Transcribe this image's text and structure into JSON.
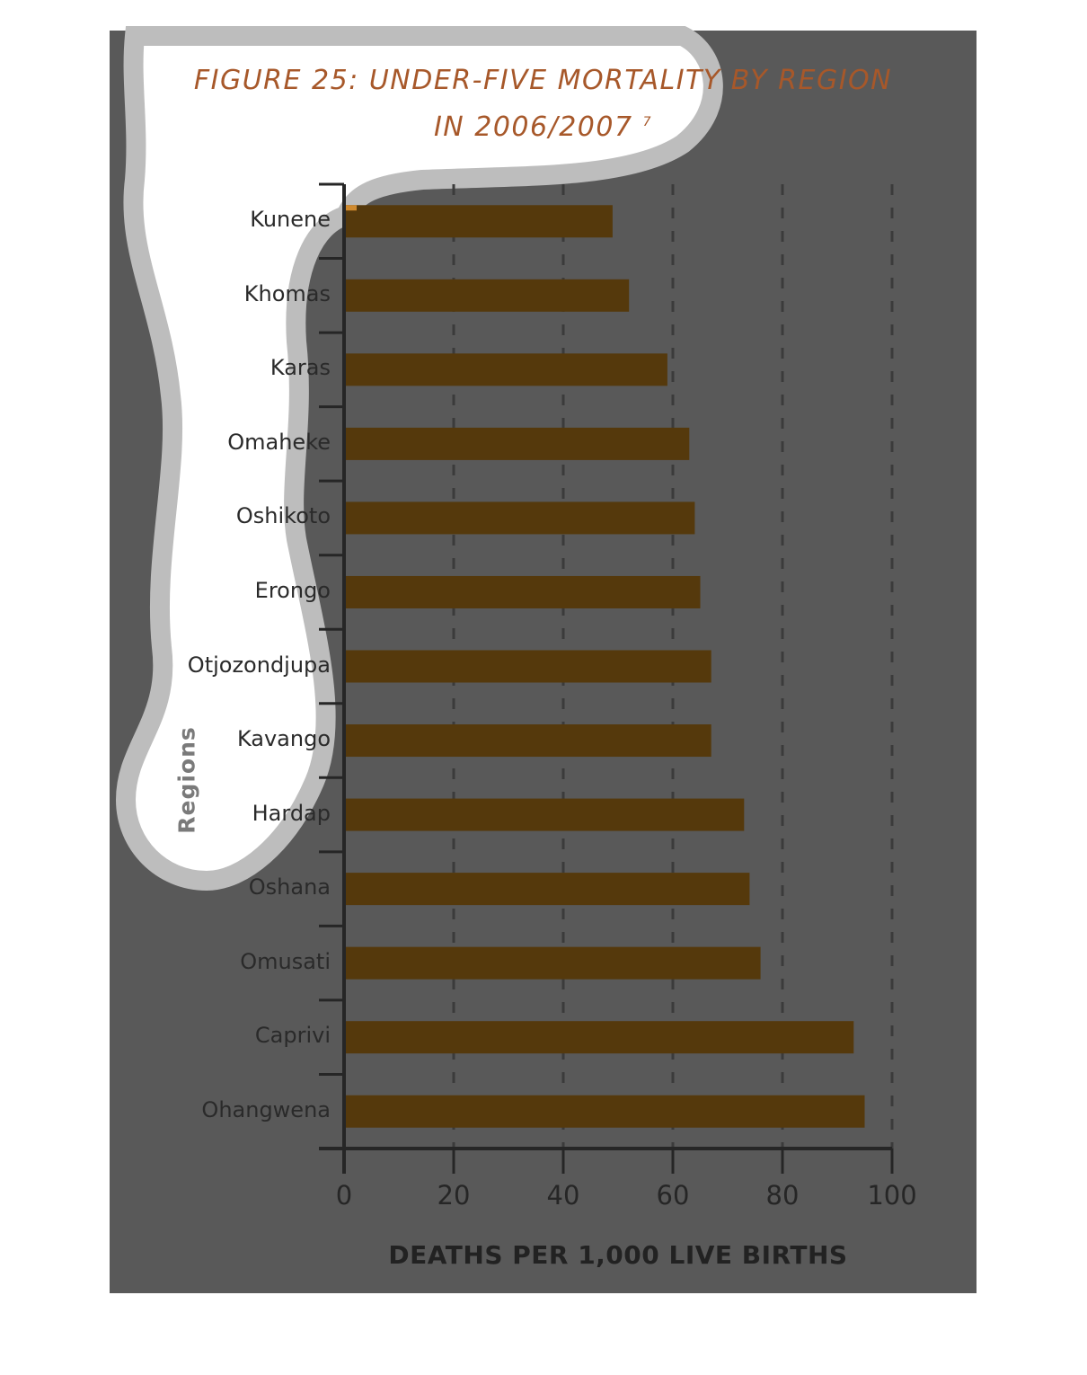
{
  "chart_data": {
    "type": "bar",
    "orientation": "horizontal",
    "title": "FIGURE 25: UNDER-FIVE MORTALITY BY REGION",
    "title_line2": "IN 2006/2007",
    "title_ref": "7",
    "xlabel": "DEATHS PER 1,000 LIVE BIRTHS",
    "ylabel": "Regions",
    "xlim": [
      0,
      100
    ],
    "xticks": [
      "0",
      "20",
      "40",
      "60",
      "80",
      "100"
    ],
    "categories": [
      "Kunene",
      "Khomas",
      "Karas",
      "Omaheke",
      "Oshikoto",
      "Erongo",
      "Otjozondjupa",
      "Kavango",
      "Hardap",
      "Oshana",
      "Omusati",
      "Caprivi",
      "Ohangwena"
    ],
    "values": [
      49,
      52,
      59,
      63,
      64,
      65,
      67,
      67,
      73,
      74,
      76,
      93,
      95
    ],
    "grid": "vertical dashed",
    "bar_color": "#55390c",
    "panel_color": "#595959",
    "title_color": "#a7582a"
  }
}
